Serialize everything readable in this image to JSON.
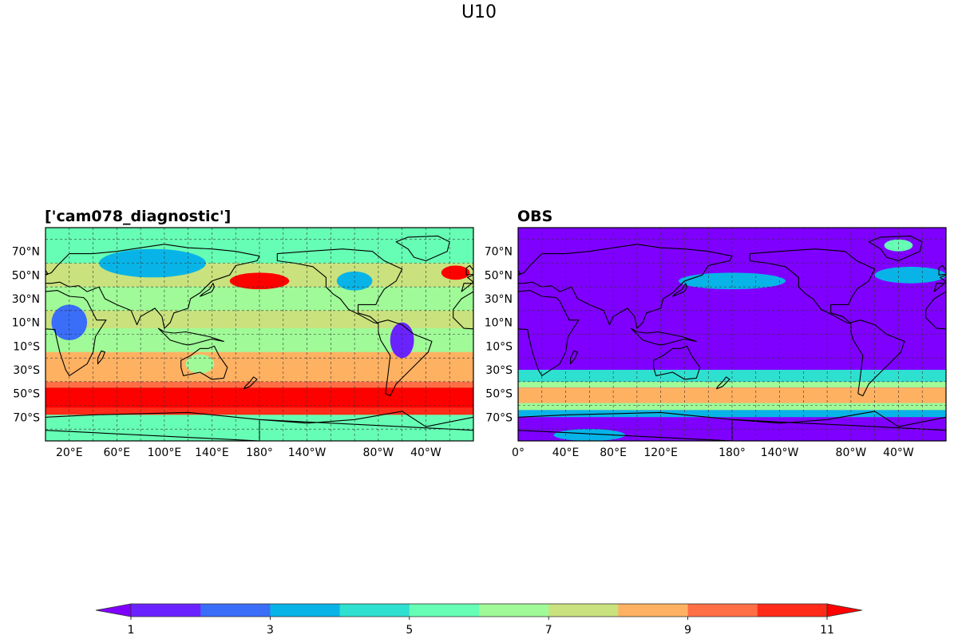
{
  "figure": {
    "title": "U10"
  },
  "panels": [
    {
      "title": "['cam078_diagnostic']",
      "lat_labels": [
        "70°N",
        "50°N",
        "30°N",
        "10°N",
        "10°S",
        "30°S",
        "50°S",
        "70°S"
      ],
      "lon_labels": [
        "20°E",
        "60°E",
        "100°E",
        "140°E",
        "180°",
        "140°W",
        "80°W",
        "40°W"
      ],
      "background_level": 6,
      "bands": [
        {
          "lat": [
            60,
            90
          ],
          "level": 5
        },
        {
          "lat": [
            40,
            60
          ],
          "level": 7
        },
        {
          "lat": [
            20,
            40
          ],
          "level": 6
        },
        {
          "lat": [
            5,
            20
          ],
          "level": 7
        },
        {
          "lat": [
            -15,
            5
          ],
          "level": 6
        },
        {
          "lat": [
            -25,
            -15
          ],
          "level": 8
        },
        {
          "lat": [
            -40,
            -25
          ],
          "level": 8
        },
        {
          "lat": [
            -45,
            -40
          ],
          "level": 9
        },
        {
          "lat": [
            -62,
            -45
          ],
          "level": 11
        },
        {
          "lat": [
            -68,
            -62
          ],
          "level": 10
        },
        {
          "lat": [
            -90,
            -68
          ],
          "level": 5
        }
      ],
      "blobs": [
        {
          "lon": 180,
          "lat": 45,
          "rx": 25,
          "ry": 7,
          "level": 11
        },
        {
          "lon": -15,
          "lat": 52,
          "rx": 12,
          "ry": 6,
          "level": 11
        },
        {
          "lon": 90,
          "lat": 60,
          "rx": 45,
          "ry": 12,
          "level": 3
        },
        {
          "lon": 20,
          "lat": 10,
          "rx": 15,
          "ry": 15,
          "level": 2
        },
        {
          "lon": -60,
          "lat": -5,
          "rx": 10,
          "ry": 15,
          "level": 1
        },
        {
          "lon": 130,
          "lat": -25,
          "rx": 12,
          "ry": 8,
          "level": 6
        },
        {
          "lon": -100,
          "lat": 45,
          "rx": 15,
          "ry": 8,
          "level": 3
        }
      ]
    },
    {
      "title": "OBS",
      "lat_labels": [
        "70°N",
        "50°N",
        "30°N",
        "10°N",
        "10°S",
        "30°S",
        "50°S",
        "70°S"
      ],
      "lon_labels": [
        "0°",
        "40°E",
        "80°E",
        "120°E",
        "180°",
        "140°W",
        "80°W",
        "40°W"
      ],
      "background_level": 0,
      "bands": [
        {
          "lat": [
            -40,
            -30
          ],
          "level": 4
        },
        {
          "lat": [
            -45,
            -40
          ],
          "level": 6
        },
        {
          "lat": [
            -58,
            -45
          ],
          "level": 8
        },
        {
          "lat": [
            -64,
            -58
          ],
          "level": 6
        },
        {
          "lat": [
            -70,
            -64
          ],
          "level": 3
        },
        {
          "lat": [
            -90,
            -70
          ],
          "level": 0
        }
      ],
      "blobs": [
        {
          "lon": 180,
          "lat": 45,
          "rx": 45,
          "ry": 7,
          "level": 3
        },
        {
          "lon": -30,
          "lat": 50,
          "rx": 30,
          "ry": 7,
          "level": 3
        },
        {
          "lon": -40,
          "lat": 75,
          "rx": 12,
          "ry": 5,
          "level": 5
        },
        {
          "lon": 60,
          "lat": -85,
          "rx": 30,
          "ry": 5,
          "level": 3
        }
      ]
    }
  ],
  "colorbar": {
    "tick_labels": [
      "1",
      "3",
      "5",
      "7",
      "9",
      "11"
    ],
    "ticks": [
      1,
      3,
      5,
      7,
      9,
      11
    ],
    "min": 1,
    "max": 11,
    "extend": "both",
    "colors": [
      "#7f00ff",
      "#6a23ff",
      "#3a6df8",
      "#08b4e7",
      "#2ee0d0",
      "#66feb4",
      "#9ffa97",
      "#c9e27d",
      "#ffb162",
      "#ff6e45",
      "#ff2a18",
      "#ff0000"
    ]
  }
}
